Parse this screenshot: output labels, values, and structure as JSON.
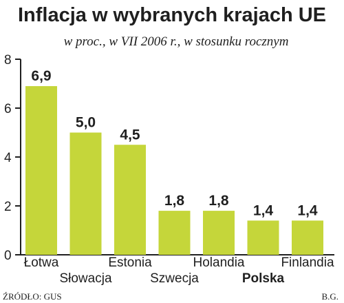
{
  "chart_data": {
    "type": "bar",
    "title": "Inflacja w wybranych krajach UE",
    "subtitle": "w proc., w VII 2006 r., w stosunku rocznym",
    "categories": [
      "Łotwa",
      "Słowacja",
      "Estonia",
      "Szwecja",
      "Holandia",
      "Polska",
      "Finlandia"
    ],
    "values": [
      6.9,
      5.0,
      4.5,
      1.8,
      1.8,
      1.4,
      1.4
    ],
    "value_labels": [
      "6,9",
      "5,0",
      "4,5",
      "1,8",
      "1,8",
      "1,4",
      "1,4"
    ],
    "highlight_category": "Polska",
    "ylim": [
      0,
      8
    ],
    "yticks": [
      0,
      2,
      4,
      6,
      8
    ],
    "ytick_labels": [
      "0",
      "2",
      "4",
      "6",
      "8"
    ],
    "xlabel": "",
    "ylabel": "",
    "grid": false,
    "bar_color": "#c5d63a",
    "source": "ŹRÓDŁO: GUS",
    "author": "B.G."
  }
}
